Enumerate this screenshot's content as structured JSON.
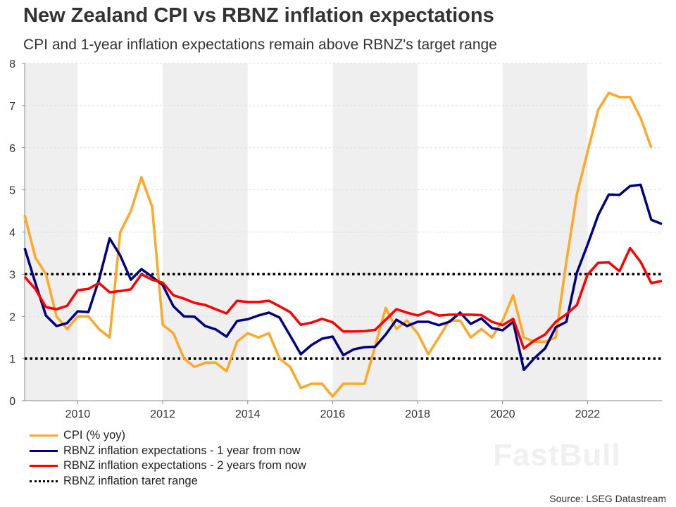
{
  "title": "New Zealand CPI vs RBNZ inflation expectations",
  "subtitle": "CPI and 1-year inflation expectations remain above RBNZ's target range",
  "source": "Source: LSEG Datastream",
  "watermark": "FastBull",
  "chart_data": {
    "type": "line",
    "x_start": 2008.75,
    "x_step_years": 0.25,
    "xlim": [
      2008.75,
      2023.75
    ],
    "ylim": [
      0,
      8
    ],
    "x_ticks": [
      "2010",
      "2012",
      "2014",
      "2016",
      "2018",
      "2020",
      "2022"
    ],
    "y_ticks": [
      "0",
      "1",
      "2",
      "3",
      "4",
      "5",
      "6",
      "7",
      "8"
    ],
    "grid": "horizontal dashed",
    "shaded_bands": [
      [
        2008.75,
        2010
      ],
      [
        2012,
        2014
      ],
      [
        2016,
        2018
      ],
      [
        2020,
        2022
      ]
    ],
    "legend_position": "bottom-left",
    "series": [
      {
        "name": "CPI (% yoy)",
        "color": "#ffa726",
        "style": "solid",
        "values": [
          4.4,
          3.4,
          3.0,
          2.0,
          1.7,
          2.0,
          2.0,
          1.7,
          1.5,
          4.0,
          4.5,
          5.3,
          4.6,
          1.8,
          1.6,
          1.0,
          0.8,
          0.9,
          0.9,
          0.7,
          1.4,
          1.6,
          1.5,
          1.6,
          1.0,
          0.8,
          0.3,
          0.4,
          0.4,
          0.1,
          0.4,
          0.4,
          0.4,
          1.3,
          2.2,
          1.7,
          1.9,
          1.6,
          1.1,
          1.5,
          1.9,
          1.9,
          1.5,
          1.7,
          1.5,
          1.9,
          2.5,
          1.5,
          1.4,
          1.4,
          1.5,
          3.3,
          4.9,
          5.9,
          6.9,
          7.3,
          7.2,
          7.2,
          6.7,
          6.0
        ]
      },
      {
        "name": "RBNZ inflation expectations - 1 year from now",
        "color": "#000080",
        "style": "solid",
        "values": [
          3.62,
          2.8,
          2.02,
          1.77,
          1.84,
          2.12,
          2.1,
          2.87,
          3.85,
          3.44,
          2.87,
          3.12,
          2.94,
          2.74,
          2.24,
          2.0,
          1.99,
          1.77,
          1.69,
          1.52,
          1.89,
          1.93,
          2.02,
          2.09,
          1.97,
          1.54,
          1.1,
          1.32,
          1.47,
          1.52,
          1.08,
          1.22,
          1.27,
          1.28,
          1.57,
          1.92,
          1.77,
          1.87,
          1.87,
          1.79,
          1.87,
          2.09,
          1.82,
          1.95,
          1.72,
          1.67,
          1.87,
          0.73,
          1.01,
          1.24,
          1.74,
          1.87,
          3.04,
          3.7,
          4.4,
          4.89,
          4.88,
          5.09,
          5.12,
          4.29,
          4.19
        ]
      },
      {
        "name": "RBNZ inflation expectations - 2 years from now",
        "color": "#ff0000",
        "style": "solid",
        "values": [
          2.94,
          2.65,
          2.22,
          2.17,
          2.25,
          2.62,
          2.65,
          2.79,
          2.57,
          2.6,
          2.64,
          3.0,
          2.87,
          2.8,
          2.5,
          2.42,
          2.32,
          2.27,
          2.17,
          2.07,
          2.37,
          2.34,
          2.34,
          2.37,
          2.24,
          2.1,
          1.8,
          1.85,
          1.94,
          1.86,
          1.64,
          1.64,
          1.65,
          1.68,
          1.92,
          2.17,
          2.09,
          2.02,
          2.12,
          2.02,
          2.04,
          2.04,
          2.04,
          2.03,
          1.87,
          1.79,
          1.94,
          1.24,
          1.43,
          1.57,
          1.87,
          2.05,
          2.27,
          2.99,
          3.27,
          3.28,
          3.07,
          3.62,
          3.29,
          2.79,
          2.84
        ]
      },
      {
        "name": "RBNZ inflation taret range",
        "color": "#000000",
        "style": "dotted",
        "levels": [
          1,
          3
        ]
      }
    ]
  }
}
